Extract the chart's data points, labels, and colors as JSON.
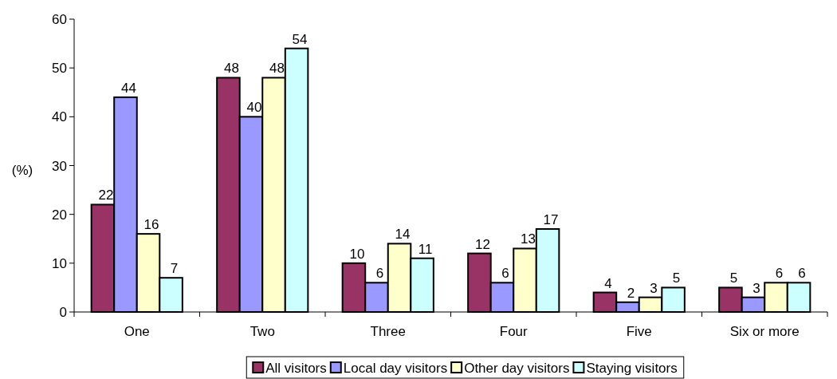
{
  "chart_data": {
    "type": "bar",
    "ylabel": "(%)",
    "categories": [
      "One",
      "Two",
      "Three",
      "Four",
      "Five",
      "Six or more"
    ],
    "series": [
      {
        "name": "All visitors",
        "color": "#993366",
        "values": [
          22,
          48,
          10,
          12,
          4,
          5
        ]
      },
      {
        "name": "Local day visitors",
        "color": "#9999ff",
        "values": [
          44,
          40,
          6,
          6,
          2,
          3
        ]
      },
      {
        "name": "Other day visitors",
        "color": "#ffffcc",
        "values": [
          16,
          48,
          14,
          13,
          3,
          6
        ]
      },
      {
        "name": "Staying visitors",
        "color": "#ccffff",
        "values": [
          7,
          54,
          11,
          17,
          5,
          6
        ]
      }
    ],
    "ylim": [
      0,
      60
    ],
    "yticks": [
      0,
      10,
      20,
      30,
      40,
      50,
      60
    ],
    "grid": false,
    "legend": "bottom",
    "data_labels": true
  }
}
